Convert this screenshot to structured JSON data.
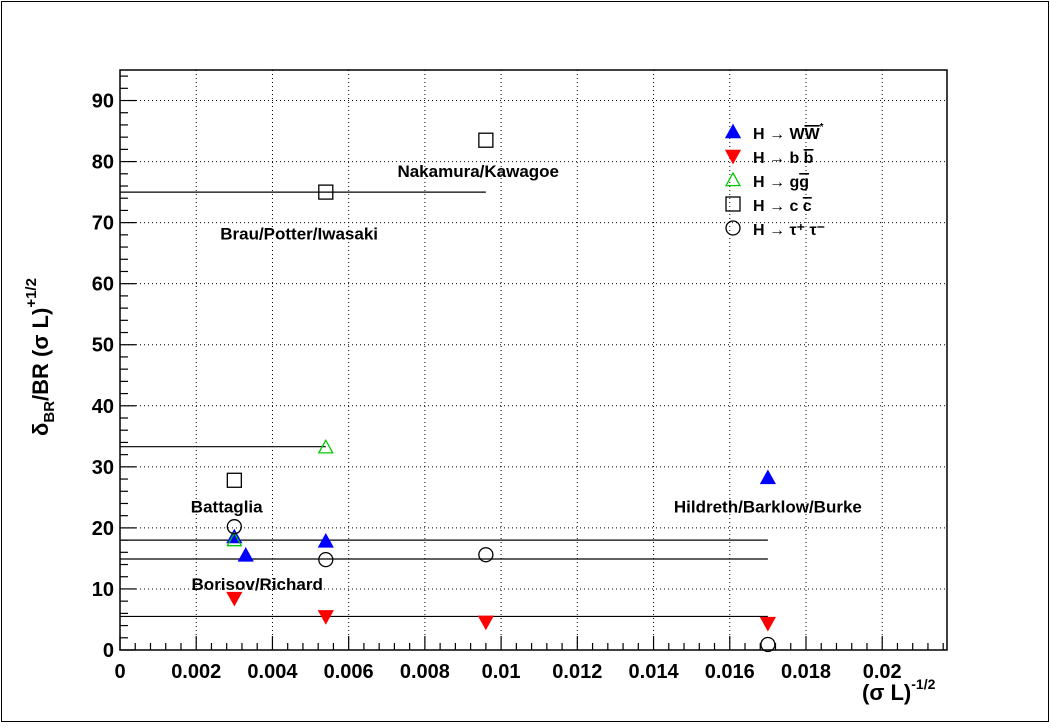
{
  "chart_data": {
    "type": "scatter",
    "title": "",
    "xlabel": {
      "base": "(σ L)",
      "sup": "-1/2"
    },
    "ylabel": {
      "main": "δ",
      "sub": "BR",
      "rest": "/BR (σ L)",
      "sup": "+1/2"
    },
    "xlim": [
      0,
      0.0217
    ],
    "ylim": [
      0,
      95
    ],
    "x_ticks": [
      0,
      0.002,
      0.004,
      0.006,
      0.008,
      0.01,
      0.012,
      0.014,
      0.016,
      0.018,
      0.02
    ],
    "x_tick_labels": [
      "0",
      "0.002",
      "0.004",
      "0.006",
      "0.008",
      "0.01",
      "0.012",
      "0.014",
      "0.016",
      "0.018",
      "0.02"
    ],
    "y_ticks": [
      0,
      10,
      20,
      30,
      40,
      50,
      60,
      70,
      80,
      90
    ],
    "y_tick_labels": [
      "0",
      "10",
      "20",
      "30",
      "40",
      "50",
      "60",
      "70",
      "80",
      "90"
    ],
    "grid": true,
    "legend": {
      "position": "top-right",
      "entries": [
        {
          "series": "ww",
          "label_main": "H → W",
          "label_over": "W",
          "label_sup": "*"
        },
        {
          "series": "bb",
          "label_main": "H → b ",
          "label_over": "b",
          "label_sup": ""
        },
        {
          "series": "gg",
          "label_main": "H → g",
          "label_over": "g",
          "label_sup": ""
        },
        {
          "series": "cc",
          "label_main": "H → c ",
          "label_over": "c",
          "label_sup": ""
        },
        {
          "series": "tautau",
          "label_main": "H → τ⁺ τ⁻",
          "label_over": "",
          "label_sup": ""
        }
      ]
    },
    "series": [
      {
        "id": "ww",
        "marker": "triangle-up-filled",
        "color": "#0000ff",
        "points": [
          {
            "x": 0.003,
            "y": 18.5
          },
          {
            "x": 0.0033,
            "y": 15.5
          },
          {
            "x": 0.0054,
            "y": 17.8
          },
          {
            "x": 0.017,
            "y": 28.2
          }
        ]
      },
      {
        "id": "bb",
        "marker": "triangle-down-filled",
        "color": "#ff0000",
        "points": [
          {
            "x": 0.003,
            "y": 8.5
          },
          {
            "x": 0.0054,
            "y": 5.5
          },
          {
            "x": 0.0096,
            "y": 4.6
          },
          {
            "x": 0.017,
            "y": 4.4
          }
        ]
      },
      {
        "id": "gg",
        "marker": "triangle-up-open",
        "color": "#00cc00",
        "points": [
          {
            "x": 0.003,
            "y": 18.0
          },
          {
            "x": 0.0054,
            "y": 33.2
          }
        ]
      },
      {
        "id": "cc",
        "marker": "square-open",
        "color": "#000000",
        "points": [
          {
            "x": 0.003,
            "y": 27.8
          },
          {
            "x": 0.0054,
            "y": 75.0
          },
          {
            "x": 0.0096,
            "y": 83.5
          }
        ]
      },
      {
        "id": "tautau",
        "marker": "circle-open",
        "color": "#000000",
        "points": [
          {
            "x": 0.003,
            "y": 20.2
          },
          {
            "x": 0.0054,
            "y": 14.8
          },
          {
            "x": 0.0096,
            "y": 15.6
          },
          {
            "x": 0.017,
            "y": 0.9
          }
        ]
      }
    ],
    "reference_lines": [
      {
        "y": 75.0,
        "x_from": 0,
        "x_to": 0.0096
      },
      {
        "y": 33.3,
        "x_from": 0,
        "x_to": 0.0054
      },
      {
        "y": 18.0,
        "x_from": 0,
        "x_to": 0.017
      },
      {
        "y": 14.9,
        "x_from": 0,
        "x_to": 0.017
      },
      {
        "y": 5.5,
        "x_from": 0,
        "x_to": 0.017
      }
    ],
    "annotations": [
      {
        "text": "Nakamura/Kawagoe",
        "x": 0.0094,
        "y": 77.5,
        "anchor": "middle"
      },
      {
        "text": "Brau/Potter/Iwasaki",
        "x": 0.0047,
        "y": 67.2,
        "anchor": "middle"
      },
      {
        "text": "Battaglia",
        "x": 0.0028,
        "y": 22.5,
        "anchor": "middle"
      },
      {
        "text": "Hildreth/Barklow/Burke",
        "x": 0.017,
        "y": 22.5,
        "anchor": "middle"
      },
      {
        "text": "Borisov/Richard",
        "x": 0.0036,
        "y": 9.8,
        "anchor": "middle"
      }
    ]
  }
}
